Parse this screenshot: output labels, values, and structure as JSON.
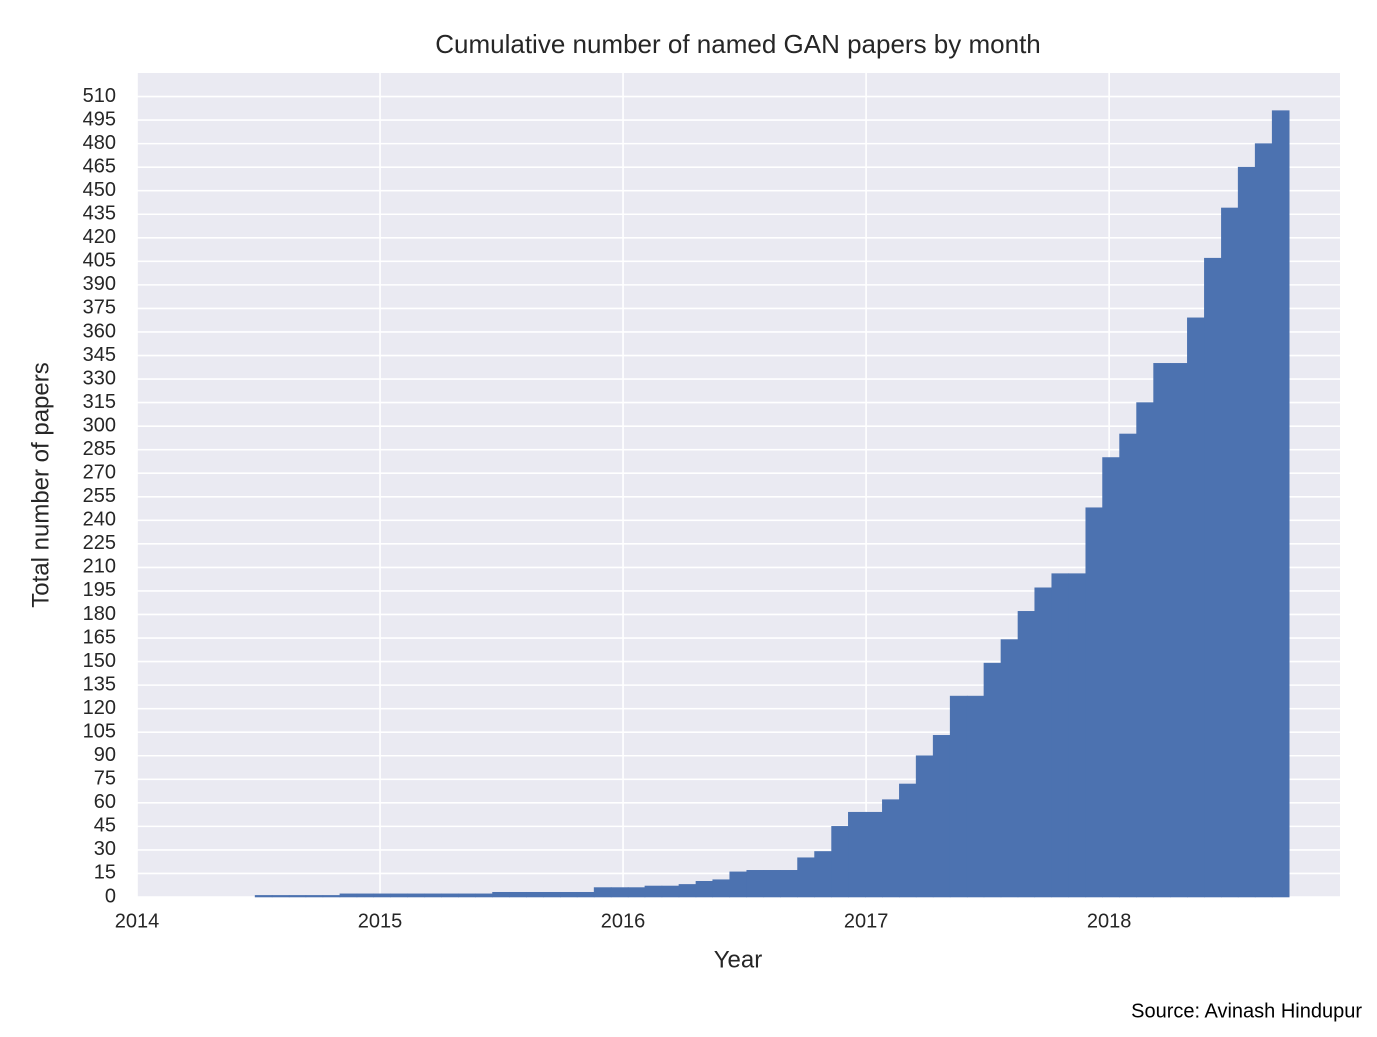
{
  "chart_data": {
    "type": "histogram",
    "title": "Cumulative number of named GAN papers by month",
    "xlabel": "Year",
    "ylabel": "Total number of papers",
    "source": "Source: Avinash Hindupur",
    "color": "#4c72b0",
    "grid": true,
    "bins": [
      2014.486,
      2014.556,
      2014.626,
      2014.695,
      2014.765,
      2014.835,
      2014.905,
      2014.974,
      2015.044,
      2015.114,
      2015.184,
      2015.253,
      2015.323,
      2015.393,
      2015.463,
      2015.532,
      2015.602,
      2015.672,
      2015.742,
      2015.811,
      2015.881,
      2015.951,
      2016.021,
      2016.09,
      2016.16,
      2016.23,
      2016.3,
      2016.369,
      2016.439,
      2016.509,
      2016.579,
      2016.648,
      2016.718,
      2016.788,
      2016.858,
      2016.927,
      2016.997,
      2017.067,
      2017.137,
      2017.206,
      2017.276,
      2017.346,
      2017.416,
      2017.485,
      2017.555,
      2017.625,
      2017.694,
      2017.764,
      2017.834,
      2017.904,
      2017.973,
      2018.043,
      2018.113,
      2018.183,
      2018.252,
      2018.322,
      2018.392,
      2018.462,
      2018.531,
      2018.601,
      2018.671,
      2018.741
    ],
    "values": [
      1,
      1,
      1,
      1,
      1,
      2,
      2,
      2,
      2,
      2,
      2,
      2,
      2,
      2,
      3,
      3,
      3,
      3,
      3,
      3,
      6,
      6,
      6,
      7,
      7,
      8,
      10,
      11,
      16,
      17,
      17,
      17,
      25,
      29,
      45,
      54,
      54,
      62,
      72,
      90,
      103,
      128,
      128,
      149,
      164,
      182,
      197,
      206,
      206,
      248,
      280,
      295,
      315,
      340,
      340,
      369,
      407,
      439,
      465,
      480,
      501
    ],
    "xlim": [
      2014,
      2018.95
    ],
    "xticks": [
      2014,
      2015,
      2016,
      2017,
      2018
    ],
    "ylim": [
      0,
      525
    ],
    "yticks": [
      0,
      15,
      30,
      45,
      60,
      75,
      90,
      105,
      120,
      135,
      150,
      165,
      180,
      195,
      210,
      225,
      240,
      255,
      270,
      285,
      300,
      315,
      330,
      345,
      360,
      375,
      390,
      405,
      420,
      435,
      450,
      465,
      480,
      495,
      510
    ]
  }
}
